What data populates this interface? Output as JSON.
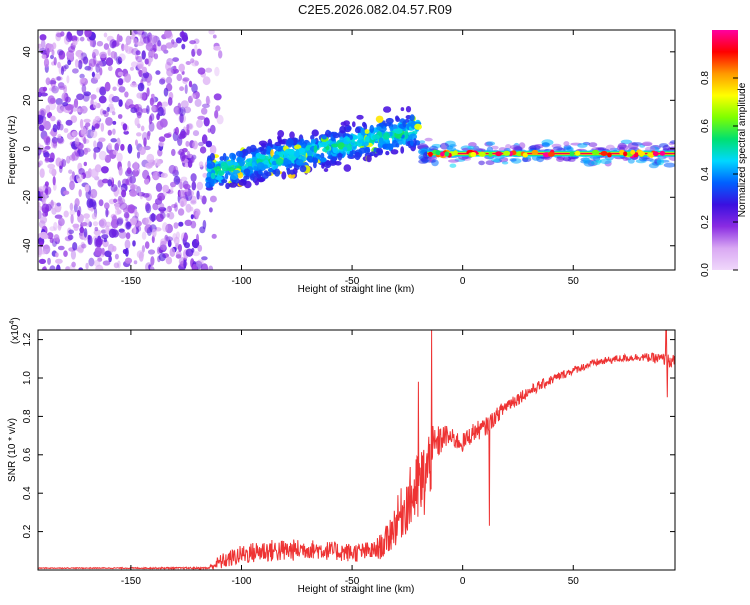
{
  "title": "C2E5.2026.082.04.57.R09",
  "colors": {
    "snr_line": "#ee3333",
    "axis": "#000000",
    "colormap": [
      "#f0d8fb",
      "#d9a8f3",
      "#8a2be2",
      "#3a10e0",
      "#0060ff",
      "#00d8ff",
      "#00e070",
      "#7fff00",
      "#ffff00",
      "#ff9900",
      "#ff0000",
      "#ff00a0"
    ]
  },
  "chart_data": [
    {
      "type": "heatmap",
      "title": "C2E5.2026.082.04.57.R09",
      "xlabel": "Height of straight line (km)",
      "ylabel": "Frequency (Hz)",
      "xlim": [
        -192,
        96
      ],
      "ylim": [
        -50,
        49
      ],
      "xticks": [
        -150,
        -100,
        -50,
        0,
        50
      ],
      "yticks": [
        -40,
        -20,
        0,
        20,
        40
      ],
      "colorbar": {
        "label": "Normalized spectral amplitude",
        "range": [
          0.0,
          1.0
        ],
        "ticks": [
          "0.0",
          "0.2",
          "0.4",
          "0.6",
          "0.8"
        ],
        "tick_values": [
          0.0,
          0.2,
          0.4,
          0.6,
          0.8
        ]
      },
      "regions": [
        {
          "x": [
            -192,
            -115
          ],
          "description_amplitude": [
            0.05,
            0.25
          ],
          "freq_range": [
            -50,
            49
          ]
        },
        {
          "x": [
            -115,
            -20
          ],
          "center_freq": [
            -10,
            8
          ],
          "spread_hz": 8,
          "amplitude": [
            0.25,
            0.55
          ]
        },
        {
          "x": [
            -20,
            96
          ],
          "center_freq": [
            -2,
            -2
          ],
          "spread_hz": 3,
          "amplitude": [
            0.6,
            1.0
          ]
        }
      ]
    },
    {
      "type": "line",
      "xlabel": "Height of straight line (km)",
      "ylabel": "SNR (10 * v/v)",
      "scale_label": "(x10",
      "scale_exponent": "4",
      "y_unit_scale": 10000,
      "xlim": [
        -192,
        96
      ],
      "ylim": [
        0,
        1.25
      ],
      "xticks": [
        -150,
        -100,
        -50,
        0,
        50
      ],
      "yticks": [
        0.2,
        0.4,
        0.6,
        0.8,
        1.0,
        1.2
      ],
      "yticklabels": [
        "0.2",
        "0.4",
        "0.6",
        "0.8",
        "1.0",
        "1.2"
      ],
      "envelope": {
        "x": [
          -192,
          -150,
          -115,
          -110,
          -100,
          -90,
          -80,
          -70,
          -60,
          -50,
          -40,
          -35,
          -30,
          -25,
          -22,
          -20,
          -18,
          -15,
          -12,
          -8,
          -4,
          0,
          5,
          10,
          15,
          20,
          30,
          40,
          50,
          60,
          70,
          80,
          90,
          96
        ],
        "mean": [
          0.01,
          0.01,
          0.01,
          0.04,
          0.08,
          0.1,
          0.1,
          0.11,
          0.1,
          0.09,
          0.1,
          0.14,
          0.25,
          0.35,
          0.4,
          0.42,
          0.45,
          0.55,
          0.65,
          0.7,
          0.68,
          0.66,
          0.72,
          0.74,
          0.8,
          0.86,
          0.93,
          0.99,
          1.04,
          1.08,
          1.1,
          1.11,
          1.1,
          1.08
        ],
        "noise": [
          0.002,
          0.003,
          0.005,
          0.04,
          0.05,
          0.06,
          0.06,
          0.05,
          0.05,
          0.05,
          0.05,
          0.08,
          0.12,
          0.16,
          0.18,
          0.2,
          0.22,
          0.2,
          0.1,
          0.06,
          0.05,
          0.05,
          0.05,
          0.05,
          0.04,
          0.04,
          0.03,
          0.025,
          0.02,
          0.02,
          0.02,
          0.02,
          0.03,
          0.04
        ]
      },
      "spikes": [
        {
          "x": -14,
          "y": 1.25
        },
        {
          "x": -20,
          "y": 0.98
        },
        {
          "x": 12,
          "y": 0.23
        },
        {
          "x": 92,
          "y": 1.27
        },
        {
          "x": 92.5,
          "y": 0.9
        }
      ]
    }
  ]
}
